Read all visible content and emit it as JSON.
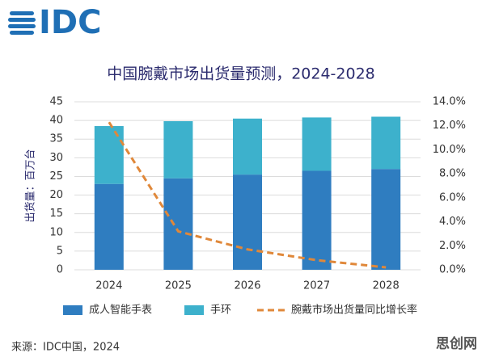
{
  "logo": "IDC",
  "chart_data": {
    "type": "bar",
    "stacked": true,
    "title": "中国腕戴市场出货量预测，2024-2028",
    "y_label": "出货量：百万台",
    "categories": [
      "2024",
      "2025",
      "2026",
      "2027",
      "2028"
    ],
    "series": [
      {
        "name": "成人智能手表",
        "color": "#2f7dc0",
        "values": [
          23,
          24.5,
          25.5,
          26.5,
          27
        ]
      },
      {
        "name": "手环",
        "color": "#3db1cc",
        "values": [
          15.5,
          15.3,
          15,
          14.3,
          14
        ]
      },
      {
        "name": "腕戴市场出货量同比增长率",
        "color": "#e0883a",
        "type": "line",
        "dashed": true,
        "axis": "y2",
        "values": [
          12.3,
          3.2,
          1.7,
          0.8,
          0.2
        ]
      }
    ],
    "ylim": [
      0,
      45
    ],
    "yticks": [
      0,
      5,
      10,
      15,
      20,
      25,
      30,
      35,
      40,
      45
    ],
    "y2lim": [
      0,
      14
    ],
    "y2ticks": [
      {
        "value": 0,
        "label": "0.0%"
      },
      {
        "value": 2,
        "label": "2.0%"
      },
      {
        "value": 4,
        "label": "4.0%"
      },
      {
        "value": 6,
        "label": "6.0%"
      },
      {
        "value": 8,
        "label": "8.0%"
      },
      {
        "value": 10,
        "label": "10.0%"
      },
      {
        "value": 12,
        "label": "12.0%"
      },
      {
        "value": 14,
        "label": "14.0%"
      }
    ],
    "grid": true,
    "legend": "bottom"
  },
  "source": "来源：IDC中国，2024",
  "watermark": "思创网"
}
